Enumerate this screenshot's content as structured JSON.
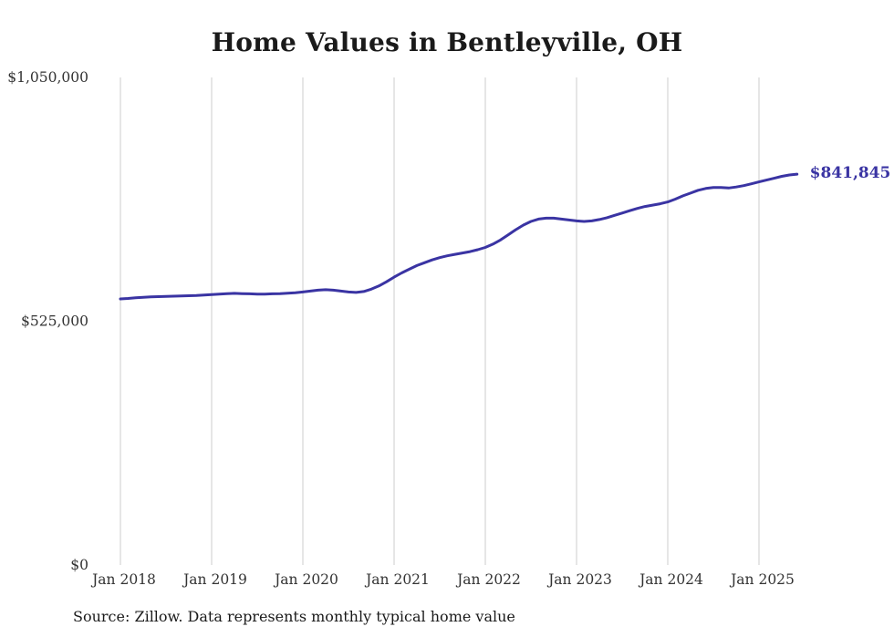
{
  "title": "Home Values in Bentleyville, OH",
  "source_note": "Source: Zillow. Data represents monthly typical home value",
  "colors": {
    "line": "#3a34a3",
    "accent_label": "#3a34a3",
    "grid": "#cccccc",
    "tick_text": "#333333",
    "title_text": "#1a1a1a",
    "background": "#ffffff"
  },
  "chart_data": {
    "type": "line",
    "title": "Home Values in Bentleyville, OH",
    "xlabel": "",
    "ylabel": "",
    "ylim": [
      0,
      1050000
    ],
    "grid": "vertical",
    "legend_position": "none",
    "y_ticks": [
      {
        "value": 0,
        "label": "$0"
      },
      {
        "value": 525000,
        "label": "$525,000"
      },
      {
        "value": 1050000,
        "label": "$1,050,000"
      }
    ],
    "x_ticks": [
      "Jan 2018",
      "Jan 2019",
      "Jan 2020",
      "Jan 2021",
      "Jan 2022",
      "Jan 2023",
      "Jan 2024",
      "Jan 2025"
    ],
    "x_range": [
      "2018-01",
      "2025-06"
    ],
    "x_frequency": "monthly",
    "last_value": 841845,
    "last_value_label": "$841,845",
    "series": [
      {
        "name": "Typical home value",
        "monthly_values": [
          573000,
          574000,
          575500,
          576500,
          577500,
          578000,
          578500,
          579000,
          579500,
          580000,
          580500,
          581500,
          582500,
          583500,
          584500,
          585000,
          584500,
          584000,
          583500,
          583500,
          584000,
          584500,
          585500,
          586500,
          588000,
          590000,
          592000,
          593000,
          592000,
          590000,
          588000,
          587000,
          589000,
          594000,
          601000,
          610000,
          620000,
          629000,
          637000,
          645000,
          651000,
          657000,
          662000,
          666000,
          669000,
          672000,
          675000,
          679000,
          684000,
          691000,
          700000,
          711000,
          722000,
          732000,
          740000,
          745000,
          747000,
          747000,
          745000,
          743000,
          741000,
          740000,
          741000,
          744000,
          748000,
          753000,
          758000,
          763000,
          768000,
          772000,
          775000,
          778000,
          782000,
          788000,
          795000,
          801000,
          807000,
          811000,
          813000,
          813000,
          812000,
          814000,
          817000,
          821000,
          825000,
          829000,
          833000,
          837000,
          840000,
          841845
        ]
      }
    ]
  }
}
